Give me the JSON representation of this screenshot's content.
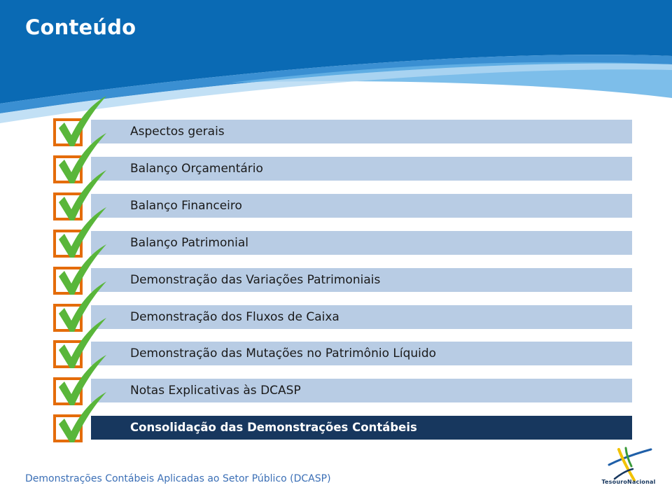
{
  "title": "Conteúdo",
  "items": [
    {
      "label": "Aspectos gerais",
      "checked": true,
      "active": false
    },
    {
      "label": "Balanço Orçamentário",
      "checked": true,
      "active": false
    },
    {
      "label": "Balanço Financeiro",
      "checked": true,
      "active": false
    },
    {
      "label": "Balanço Patrimonial",
      "checked": true,
      "active": false
    },
    {
      "label": "Demonstração das Variações Patrimoniais",
      "checked": true,
      "active": false
    },
    {
      "label": "Demonstração dos Fluxos de Caixa",
      "checked": true,
      "active": false
    },
    {
      "label": "Demonstração das Mutações no Patrimônio Líquido",
      "checked": true,
      "active": false
    },
    {
      "label": "Notas Explicativas às DCASP",
      "checked": true,
      "active": false
    },
    {
      "label": "Consolidação das Demonstrações Contábeis",
      "checked": true,
      "active": true
    }
  ],
  "footer": {
    "text": "Demonstrações Contábeis Aplicadas ao Setor Público (DCASP)"
  },
  "logo": {
    "text": "TesouroNacional"
  },
  "colors": {
    "header": "#0a6ab4",
    "item_bg": "#b8cce4",
    "item_active_bg": "#17375e",
    "checkbox_border": "#e46c0a",
    "checkmark": "#59b63a",
    "footer_text": "#3b6fb6"
  }
}
